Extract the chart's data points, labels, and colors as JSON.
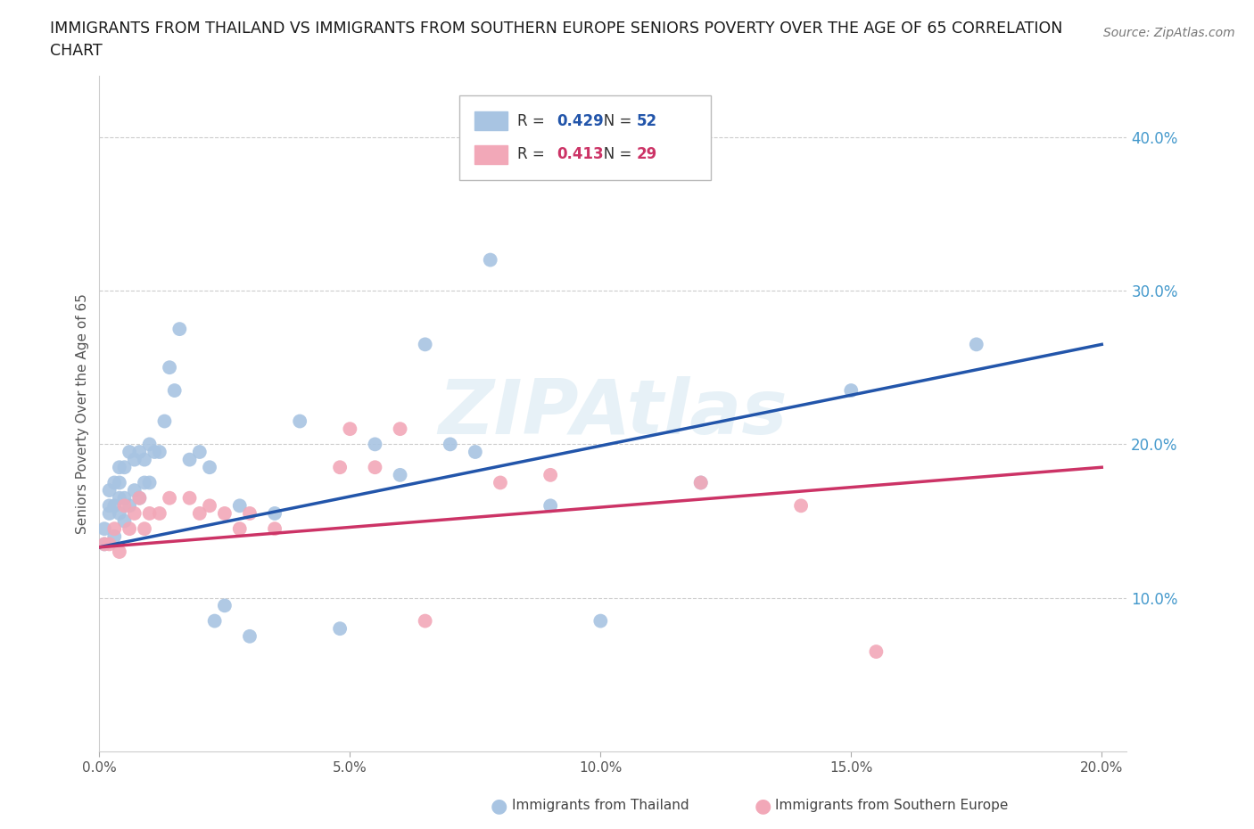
{
  "title_line1": "IMMIGRANTS FROM THAILAND VS IMMIGRANTS FROM SOUTHERN EUROPE SENIORS POVERTY OVER THE AGE OF 65 CORRELATION",
  "title_line2": "CHART",
  "source": "Source: ZipAtlas.com",
  "ylabel": "Seniors Poverty Over the Age of 65",
  "x_label_thailand": "Immigrants from Thailand",
  "x_label_southern": "Immigrants from Southern Europe",
  "xlim": [
    0.0,
    0.205
  ],
  "ylim": [
    0.0,
    0.44
  ],
  "xticks": [
    0.0,
    0.05,
    0.1,
    0.15,
    0.2
  ],
  "xtick_labels": [
    "0.0%",
    "5.0%",
    "10.0%",
    "15.0%",
    "20.0%"
  ],
  "ytick_vals": [
    0.1,
    0.2,
    0.3,
    0.4
  ],
  "ytick_labels": [
    "10.0%",
    "20.0%",
    "30.0%",
    "40.0%"
  ],
  "grid_color": "#cccccc",
  "background_color": "#ffffff",
  "watermark": "ZIPAtlas",
  "R_thailand": 0.429,
  "N_thailand": 52,
  "R_southern": 0.413,
  "N_southern": 29,
  "thailand_color": "#a8c4e2",
  "southern_color": "#f2a8b8",
  "thailand_line_color": "#2255aa",
  "southern_line_color": "#cc3366",
  "legend_R_color_thai": "#2255aa",
  "legend_R_color_south": "#cc3366",
  "legend_N_color_thai": "#2255aa",
  "legend_N_color_south": "#cc3366",
  "thailand_x": [
    0.001,
    0.001,
    0.002,
    0.002,
    0.002,
    0.003,
    0.003,
    0.003,
    0.004,
    0.004,
    0.004,
    0.004,
    0.005,
    0.005,
    0.005,
    0.006,
    0.006,
    0.007,
    0.007,
    0.008,
    0.008,
    0.009,
    0.009,
    0.01,
    0.01,
    0.011,
    0.012,
    0.013,
    0.014,
    0.015,
    0.016,
    0.018,
    0.02,
    0.022,
    0.023,
    0.025,
    0.028,
    0.03,
    0.035,
    0.04,
    0.048,
    0.055,
    0.06,
    0.065,
    0.07,
    0.075,
    0.078,
    0.09,
    0.1,
    0.12,
    0.15,
    0.175
  ],
  "thailand_y": [
    0.135,
    0.145,
    0.155,
    0.17,
    0.16,
    0.14,
    0.16,
    0.175,
    0.155,
    0.165,
    0.175,
    0.185,
    0.15,
    0.165,
    0.185,
    0.16,
    0.195,
    0.17,
    0.19,
    0.165,
    0.195,
    0.175,
    0.19,
    0.175,
    0.2,
    0.195,
    0.195,
    0.215,
    0.25,
    0.235,
    0.275,
    0.19,
    0.195,
    0.185,
    0.085,
    0.095,
    0.16,
    0.075,
    0.155,
    0.215,
    0.08,
    0.2,
    0.18,
    0.265,
    0.2,
    0.195,
    0.32,
    0.16,
    0.085,
    0.175,
    0.235,
    0.265
  ],
  "southern_x": [
    0.001,
    0.002,
    0.003,
    0.004,
    0.005,
    0.006,
    0.007,
    0.008,
    0.009,
    0.01,
    0.012,
    0.014,
    0.018,
    0.02,
    0.022,
    0.025,
    0.028,
    0.03,
    0.035,
    0.048,
    0.05,
    0.055,
    0.06,
    0.065,
    0.08,
    0.09,
    0.12,
    0.14,
    0.155
  ],
  "southern_y": [
    0.135,
    0.135,
    0.145,
    0.13,
    0.16,
    0.145,
    0.155,
    0.165,
    0.145,
    0.155,
    0.155,
    0.165,
    0.165,
    0.155,
    0.16,
    0.155,
    0.145,
    0.155,
    0.145,
    0.185,
    0.21,
    0.185,
    0.21,
    0.085,
    0.175,
    0.18,
    0.175,
    0.16,
    0.065
  ],
  "line_thai_x0": 0.0,
  "line_thai_y0": 0.133,
  "line_thai_x1": 0.2,
  "line_thai_y1": 0.265,
  "line_south_x0": 0.0,
  "line_south_y0": 0.133,
  "line_south_x1": 0.2,
  "line_south_y1": 0.185
}
